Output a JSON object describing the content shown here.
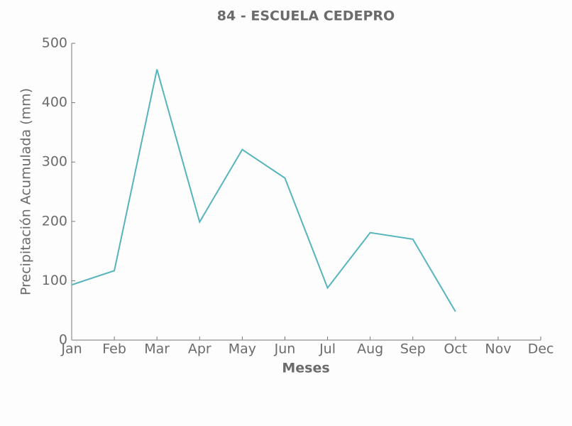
{
  "chart_data": {
    "type": "line",
    "title": "84 - ESCUELA CEDEPRO",
    "x_label": "Meses",
    "y_label": "Precipitación Acumulada (mm)",
    "categories": [
      "Jan",
      "Feb",
      "Mar",
      "Apr",
      "May",
      "Jun",
      "Jul",
      "Aug",
      "Sep",
      "Oct",
      "Nov",
      "Dec"
    ],
    "values": [
      93,
      117,
      456,
      199,
      321,
      273,
      88,
      181,
      170,
      48,
      null,
      null
    ],
    "color": "#56b4bd",
    "ylim": [
      0,
      500
    ],
    "yticks": [
      0,
      100,
      200,
      300,
      400,
      500
    ],
    "grid": false
  }
}
